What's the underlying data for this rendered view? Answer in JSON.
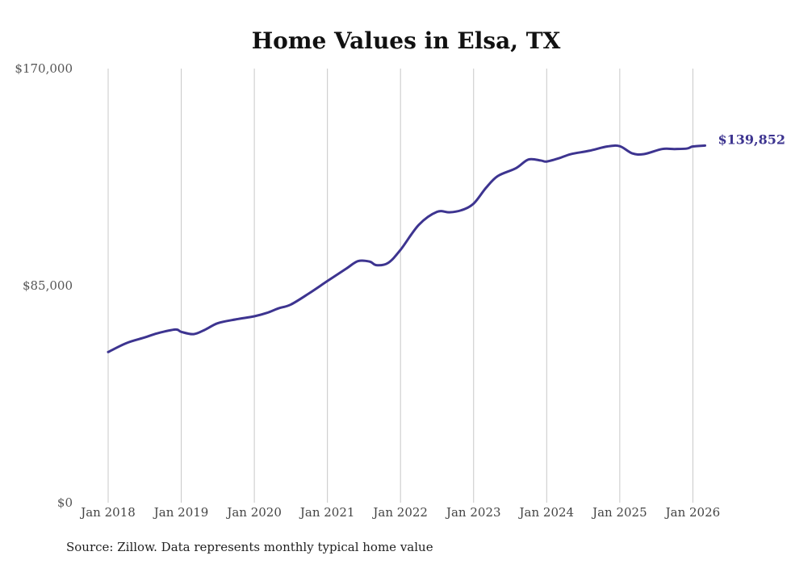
{
  "chart_data": {
    "type": "line",
    "title": "Home Values in Elsa, TX",
    "xlabel": "",
    "ylabel": "",
    "ylim": [
      0,
      170000
    ],
    "y_ticks": [
      0,
      85000,
      170000
    ],
    "y_tick_labels": [
      "$0",
      "$85,000",
      "$170,000"
    ],
    "x_range": [
      2018.0,
      2026.1667
    ],
    "x_ticks": [
      2018,
      2019,
      2020,
      2021,
      2022,
      2023,
      2024,
      2025,
      2026
    ],
    "x_tick_labels": [
      "Jan 2018",
      "Jan 2019",
      "Jan 2020",
      "Jan 2021",
      "Jan 2022",
      "Jan 2023",
      "Jan 2024",
      "Jan 2025",
      "Jan 2026"
    ],
    "grid": "vertical",
    "series": [
      {
        "name": "Typical home value",
        "color": "#3d3490",
        "end_label": "$139,852",
        "x": [
          2018.0,
          2018.25,
          2018.5,
          2018.67,
          2018.92,
          2019.0,
          2019.17,
          2019.33,
          2019.5,
          2019.75,
          2020.0,
          2020.17,
          2020.33,
          2020.5,
          2020.75,
          2021.0,
          2021.25,
          2021.42,
          2021.58,
          2021.67,
          2021.83,
          2022.0,
          2022.25,
          2022.5,
          2022.67,
          2022.83,
          2023.0,
          2023.17,
          2023.33,
          2023.58,
          2023.75,
          2023.92,
          2024.0,
          2024.17,
          2024.33,
          2024.58,
          2024.83,
          2025.0,
          2025.17,
          2025.33,
          2025.58,
          2025.75,
          2025.92,
          2026.0,
          2026.1667
        ],
        "values": [
          59000,
          62500,
          64700,
          66300,
          67800,
          66900,
          66000,
          67800,
          70300,
          71800,
          73000,
          74300,
          76100,
          77600,
          82000,
          86800,
          91500,
          94600,
          94400,
          93000,
          93900,
          99000,
          108800,
          113900,
          113700,
          114500,
          117100,
          123300,
          127900,
          131000,
          134400,
          134000,
          133600,
          134900,
          136500,
          137800,
          139500,
          139600,
          136800,
          136500,
          138500,
          138500,
          138700,
          139500,
          139852
        ]
      }
    ]
  },
  "source": "Source: Zillow. Data represents monthly typical home value"
}
